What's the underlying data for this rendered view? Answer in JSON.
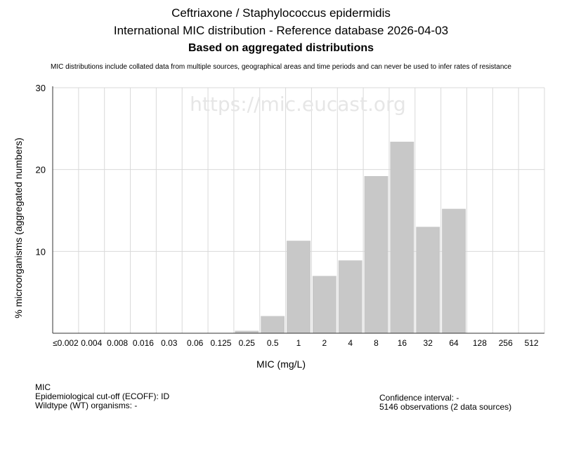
{
  "header": {
    "title": "Ceftriaxone / Staphylococcus epidermidis",
    "subtitle": "International MIC distribution - Reference database 2026-04-03",
    "basis": "Based on aggregated distributions",
    "disclaimer": "MIC distributions include collated data from multiple sources, geographical areas and time periods and can never be used to infer rates of resistance"
  },
  "watermark": "https://mic.eucast.org",
  "chart_data": {
    "type": "bar",
    "xlabel": "MIC (mg/L)",
    "ylabel": "% microorganisms (aggregated numbers)",
    "categories": [
      "≤0.002",
      "0.004",
      "0.008",
      "0.016",
      "0.03",
      "0.06",
      "0.125",
      "0.25",
      "0.5",
      "1",
      "2",
      "4",
      "8",
      "16",
      "32",
      "64",
      "128",
      "256",
      "512"
    ],
    "values": [
      0,
      0,
      0,
      0,
      0,
      0,
      0,
      0.3,
      2.1,
      11.3,
      7.0,
      8.9,
      19.2,
      23.4,
      13.0,
      15.2,
      0,
      0,
      0
    ],
    "ylim": [
      0,
      30
    ],
    "yticks": [
      10,
      20,
      30
    ],
    "grid": true,
    "bar_color": "#c8c8c8",
    "grid_color": "#d9d9d9"
  },
  "footer": {
    "mic_label": "MIC",
    "ecoff": "Epidemiological cut-off (ECOFF): ID",
    "wildtype": "Wildtype (WT) organisms:  -",
    "confidence": "Confidence interval: -",
    "observations": "5146 observations (2 data sources)"
  }
}
